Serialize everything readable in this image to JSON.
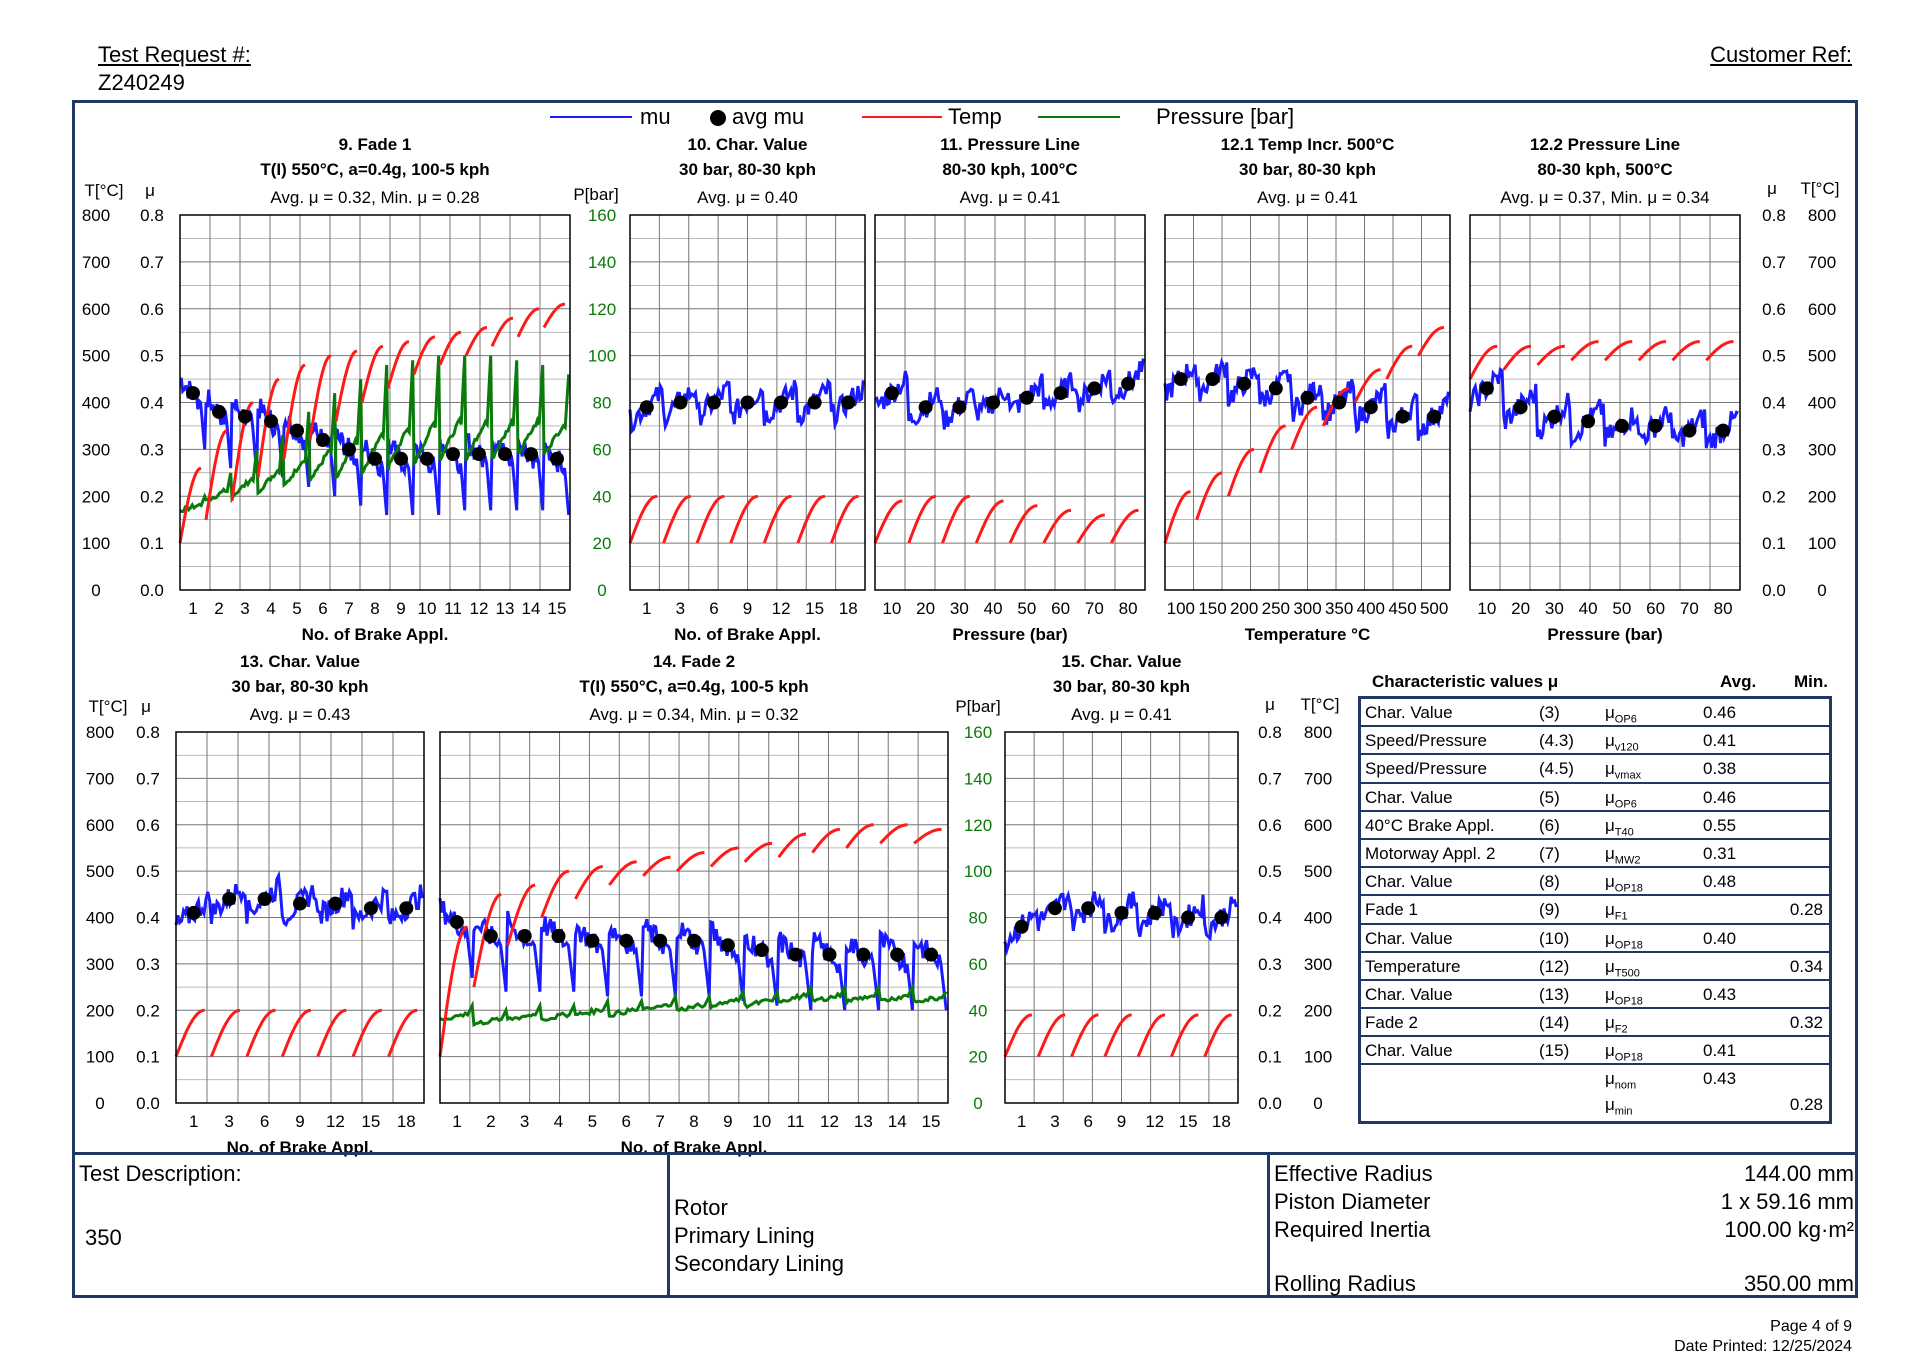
{
  "header": {
    "test_request_label": "Test Request #:",
    "test_request_value": "Z240249",
    "customer_ref_label": "Customer Ref:"
  },
  "legend": {
    "mu": "mu",
    "avg_mu": "avg mu",
    "temp": "Temp",
    "pressure": "Pressure [bar]"
  },
  "colors": {
    "mu": "#1b1bff",
    "temp": "#ff1a1a",
    "pressure": "#0a7a0a",
    "avg": "#000000",
    "frame": "#1f3864",
    "pressure_axis": "#0a7a0a"
  },
  "axis_units": {
    "temp": "T[°C]",
    "mu": "μ",
    "pressure": "P[bar]"
  },
  "axis_ticks": {
    "temp": [
      "800",
      "700",
      "600",
      "500",
      "400",
      "300",
      "200",
      "100",
      "0"
    ],
    "mu": [
      "0.8",
      "0.7",
      "0.6",
      "0.5",
      "0.4",
      "0.3",
      "0.2",
      "0.1",
      "0.0"
    ],
    "pressure": [
      "160",
      "140",
      "120",
      "100",
      "80",
      "60",
      "40",
      "20",
      "0"
    ]
  },
  "chart_data": [
    {
      "id": "p9",
      "type": "line",
      "title": "9. Fade 1",
      "subtitle": "T(I) 550°C, a=0.4g, 100-5 kph",
      "summary": "Avg. μ = 0.32, Min. μ = 0.28",
      "xlabel": "No. of Brake Appl.",
      "x_ticks": [
        "1",
        "2",
        "3",
        "4",
        "5",
        "6",
        "7",
        "8",
        "9",
        "10",
        "11",
        "12",
        "13",
        "14",
        "15"
      ],
      "ylim_mu": [
        0,
        0.8
      ],
      "ylim_temp": [
        0,
        800
      ],
      "ylim_pressure": [
        0,
        160
      ],
      "avg_mu": [
        0.42,
        0.38,
        0.37,
        0.36,
        0.34,
        0.32,
        0.3,
        0.28,
        0.28,
        0.28,
        0.29,
        0.29,
        0.29,
        0.29,
        0.28
      ],
      "temp_start": [
        100,
        150,
        190,
        240,
        280,
        320,
        360,
        400,
        430,
        460,
        480,
        500,
        520,
        540,
        560
      ],
      "temp_end": [
        260,
        340,
        400,
        450,
        480,
        500,
        510,
        520,
        530,
        540,
        550,
        560,
        580,
        600,
        610
      ],
      "pressure_base": [
        34,
        38,
        40,
        42,
        44,
        46,
        48,
        50,
        52,
        54,
        56,
        56,
        56,
        58,
        58
      ],
      "pressure_peak": [
        40,
        50,
        60,
        66,
        76,
        84,
        90,
        96,
        98,
        100,
        100,
        100,
        98,
        96,
        92
      ]
    },
    {
      "id": "p10",
      "type": "line",
      "title": "10. Char. Value",
      "subtitle": "30 bar, 80-30 kph",
      "summary": "Avg. μ = 0.40",
      "xlabel": "No. of Brake Appl.",
      "x_ticks": [
        "1",
        "3",
        "6",
        "9",
        "12",
        "15",
        "18"
      ],
      "ylim_mu": [
        0,
        0.8
      ],
      "ylim_temp": [
        0,
        800
      ],
      "avg_mu": [
        0.39,
        0.4,
        0.4,
        0.4,
        0.4,
        0.4,
        0.4
      ],
      "temp_start": [
        100,
        100,
        100,
        100,
        100,
        100,
        100
      ],
      "temp_end": [
        200,
        200,
        200,
        200,
        200,
        200,
        200
      ]
    },
    {
      "id": "p11",
      "type": "line",
      "title": "11. Pressure Line",
      "subtitle": "80-30 kph, 100°C",
      "summary": "Avg. μ = 0.41",
      "xlabel": "Pressure (bar)",
      "x_ticks": [
        "10",
        "20",
        "30",
        "40",
        "50",
        "60",
        "70",
        "80"
      ],
      "ylim_mu": [
        0,
        0.8
      ],
      "ylim_temp": [
        0,
        800
      ],
      "avg_mu": [
        0.42,
        0.39,
        0.39,
        0.4,
        0.41,
        0.42,
        0.43,
        0.44
      ],
      "temp_start": [
        100,
        100,
        100,
        100,
        100,
        100,
        100,
        100
      ],
      "temp_end": [
        190,
        200,
        200,
        190,
        180,
        170,
        160,
        170
      ]
    },
    {
      "id": "p121",
      "type": "line",
      "title": "12.1 Temp Incr. 500°C",
      "subtitle": "30 bar, 80-30 kph",
      "summary": "Avg. μ = 0.41",
      "xlabel": "Temperature °C",
      "x_ticks": [
        "100",
        "150",
        "200",
        "250",
        "300",
        "350",
        "400",
        "450",
        "500"
      ],
      "ylim_mu": [
        0,
        0.8
      ],
      "ylim_temp": [
        0,
        800
      ],
      "avg_mu": [
        0.45,
        0.45,
        0.44,
        0.43,
        0.41,
        0.4,
        0.39,
        0.37,
        0.37
      ],
      "temp_start": [
        100,
        150,
        200,
        250,
        300,
        350,
        400,
        450,
        500
      ],
      "temp_end": [
        210,
        250,
        300,
        350,
        390,
        430,
        470,
        520,
        560
      ]
    },
    {
      "id": "p122",
      "type": "line",
      "title": "12.2 Pressure Line",
      "subtitle": "80-30 kph, 500°C",
      "summary": "Avg. μ = 0.37, Min. μ = 0.34",
      "xlabel": "Pressure (bar)",
      "x_ticks": [
        "10",
        "20",
        "30",
        "40",
        "50",
        "60",
        "70",
        "80"
      ],
      "ylim_mu": [
        0,
        0.8
      ],
      "ylim_temp": [
        0,
        800
      ],
      "avg_mu": [
        0.43,
        0.39,
        0.37,
        0.36,
        0.35,
        0.35,
        0.34,
        0.34
      ],
      "temp_start": [
        450,
        470,
        480,
        490,
        490,
        490,
        490,
        490
      ],
      "temp_end": [
        520,
        520,
        520,
        530,
        530,
        530,
        530,
        530
      ]
    },
    {
      "id": "p13",
      "type": "line",
      "title": "13. Char. Value",
      "subtitle": "30 bar, 80-30 kph",
      "summary": "Avg. μ = 0.43",
      "xlabel": "No. of Brake Appl.",
      "x_ticks": [
        "1",
        "3",
        "6",
        "9",
        "12",
        "15",
        "18"
      ],
      "ylim_mu": [
        0,
        0.8
      ],
      "ylim_temp": [
        0,
        800
      ],
      "avg_mu": [
        0.41,
        0.44,
        0.44,
        0.43,
        0.43,
        0.42,
        0.42
      ],
      "temp_start": [
        100,
        100,
        100,
        100,
        100,
        100,
        100
      ],
      "temp_end": [
        200,
        200,
        200,
        200,
        200,
        200,
        200
      ]
    },
    {
      "id": "p14",
      "type": "line",
      "title": "14. Fade 2",
      "subtitle": "T(I) 550°C, a=0.4g, 100-5 kph",
      "summary": "Avg. μ = 0.34, Min. μ = 0.32",
      "xlabel": "No. of Brake Appl.",
      "x_ticks": [
        "1",
        "2",
        "3",
        "4",
        "5",
        "6",
        "7",
        "8",
        "9",
        "10",
        "11",
        "12",
        "13",
        "14",
        "15"
      ],
      "ylim_mu": [
        0,
        0.8
      ],
      "ylim_temp": [
        0,
        800
      ],
      "ylim_pressure": [
        0,
        160
      ],
      "avg_mu": [
        0.39,
        0.36,
        0.36,
        0.36,
        0.35,
        0.35,
        0.35,
        0.35,
        0.34,
        0.33,
        0.32,
        0.32,
        0.32,
        0.32,
        0.32
      ],
      "temp_start": [
        100,
        250,
        340,
        400,
        440,
        470,
        490,
        500,
        510,
        520,
        530,
        540,
        550,
        560,
        560
      ],
      "temp_end": [
        380,
        450,
        470,
        500,
        510,
        520,
        530,
        540,
        550,
        560,
        580,
        590,
        600,
        600,
        590
      ],
      "pressure_base": [
        36,
        34,
        36,
        36,
        38,
        38,
        40,
        40,
        42,
        42,
        44,
        44,
        44,
        44,
        44
      ],
      "pressure_peak": [
        42,
        40,
        42,
        42,
        44,
        44,
        46,
        46,
        48,
        48,
        50,
        50,
        50,
        50,
        48
      ]
    },
    {
      "id": "p15",
      "type": "line",
      "title": "15. Char. Value",
      "subtitle": "30 bar, 80-30 kph",
      "summary": "Avg. μ = 0.41",
      "xlabel": "",
      "x_ticks": [
        "1",
        "3",
        "6",
        "9",
        "12",
        "15",
        "18"
      ],
      "ylim_mu": [
        0,
        0.8
      ],
      "ylim_temp": [
        0,
        800
      ],
      "avg_mu": [
        0.38,
        0.42,
        0.42,
        0.41,
        0.41,
        0.4,
        0.4
      ],
      "temp_start": [
        100,
        100,
        100,
        100,
        100,
        100,
        100
      ],
      "temp_end": [
        190,
        190,
        190,
        190,
        190,
        190,
        190
      ]
    }
  ],
  "char_values": {
    "header": {
      "title": "Characteristic values μ",
      "avg": "Avg.",
      "min": "Min."
    },
    "rows": [
      {
        "name": "Char. Value",
        "num": "(3)",
        "sym": "μ",
        "sub": "OP6",
        "avg": "0.46",
        "min": ""
      },
      {
        "name": "Speed/Pressure",
        "num": "(4.3)",
        "sym": "μ",
        "sub": "v120",
        "avg": "0.41",
        "min": ""
      },
      {
        "name": "Speed/Pressure",
        "num": "(4.5)",
        "sym": "μ",
        "sub": "vmax",
        "avg": "0.38",
        "min": ""
      },
      {
        "name": "Char. Value",
        "num": "(5)",
        "sym": "μ",
        "sub": "OP6",
        "avg": "0.46",
        "min": ""
      },
      {
        "name": "40°C Brake Appl.",
        "num": "(6)",
        "sym": "μ",
        "sub": "T40",
        "avg": "0.55",
        "min": ""
      },
      {
        "name": "Motorway Appl. 2",
        "num": "(7)",
        "sym": "μ",
        "sub": "MW2",
        "avg": "0.31",
        "min": ""
      },
      {
        "name": "Char. Value",
        "num": "(8)",
        "sym": "μ",
        "sub": "OP18",
        "avg": "0.48",
        "min": ""
      },
      {
        "name": "Fade 1",
        "num": "(9)",
        "sym": "μ",
        "sub": "F1",
        "avg": "",
        "min": "0.28"
      },
      {
        "name": "Char. Value",
        "num": "(10)",
        "sym": "μ",
        "sub": "OP18",
        "avg": "0.40",
        "min": ""
      },
      {
        "name": "Temperature",
        "num": "(12)",
        "sym": "μ",
        "sub": "T500",
        "avg": "",
        "min": "0.34"
      },
      {
        "name": "Char. Value",
        "num": "(13)",
        "sym": "μ",
        "sub": "OP18",
        "avg": "0.43",
        "min": ""
      },
      {
        "name": "Fade 2",
        "num": "(14)",
        "sym": "μ",
        "sub": "F2",
        "avg": "",
        "min": "0.32"
      },
      {
        "name": "Char. Value",
        "num": "(15)",
        "sym": "μ",
        "sub": "OP18",
        "avg": "0.41",
        "min": ""
      }
    ],
    "summary": [
      {
        "sym": "μ",
        "sub": "nom",
        "avg": "0.43",
        "min": ""
      },
      {
        "sym": "μ",
        "sub": "min",
        "avg": "",
        "min": "0.28"
      }
    ]
  },
  "info": {
    "test_description_label": "Test Description:",
    "test_description_value": "350",
    "components": [
      "Rotor",
      "Primary Lining",
      "Secondary Lining"
    ],
    "specs": [
      {
        "label": "Effective Radius",
        "value": "144.00 mm"
      },
      {
        "label": "Piston Diameter",
        "value": "1 x 59.16 mm"
      },
      {
        "label": "Required Inertia",
        "value": "100.00 kg·m²"
      },
      {
        "label": "Rolling Radius",
        "value": "350.00 mm"
      }
    ]
  },
  "footer": {
    "page": "Page 4 of 9",
    "date_printed": "Date Printed: 12/25/2024"
  }
}
